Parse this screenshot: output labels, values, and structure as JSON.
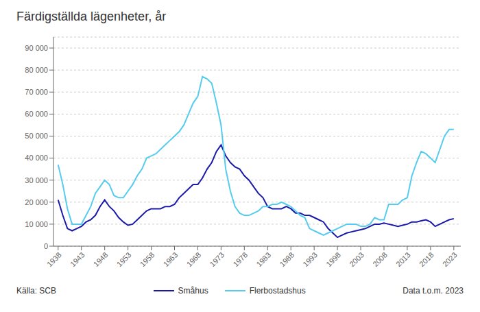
{
  "chart_data": {
    "type": "line",
    "title": "Färdigställda lägenheter, år",
    "x": [
      1938,
      1939,
      1940,
      1941,
      1942,
      1943,
      1944,
      1945,
      1946,
      1947,
      1948,
      1949,
      1950,
      1951,
      1952,
      1953,
      1954,
      1955,
      1956,
      1957,
      1958,
      1959,
      1960,
      1961,
      1962,
      1963,
      1964,
      1965,
      1966,
      1967,
      1968,
      1969,
      1970,
      1971,
      1972,
      1973,
      1974,
      1975,
      1976,
      1977,
      1978,
      1979,
      1980,
      1981,
      1982,
      1983,
      1984,
      1985,
      1986,
      1987,
      1988,
      1989,
      1990,
      1991,
      1992,
      1993,
      1994,
      1995,
      1996,
      1997,
      1998,
      1999,
      2000,
      2001,
      2002,
      2003,
      2004,
      2005,
      2006,
      2007,
      2008,
      2009,
      2010,
      2011,
      2012,
      2013,
      2014,
      2015,
      2016,
      2017,
      2018,
      2019,
      2020,
      2021,
      2022,
      2023
    ],
    "series": [
      {
        "name": "Småhus",
        "color": "#1a1aaa",
        "values": [
          21000,
          14000,
          8000,
          7000,
          8000,
          9000,
          11000,
          12000,
          14000,
          18000,
          21000,
          18000,
          16000,
          13000,
          11000,
          9500,
          10000,
          12000,
          14000,
          16000,
          17000,
          17000,
          17000,
          18000,
          18000,
          19000,
          22000,
          24000,
          26000,
          28000,
          28000,
          31000,
          35000,
          38000,
          43000,
          46000,
          41000,
          38000,
          36000,
          35000,
          32000,
          30000,
          27000,
          24000,
          22000,
          18000,
          17000,
          17000,
          17000,
          18000,
          17000,
          15000,
          15000,
          14000,
          14000,
          13000,
          12000,
          11000,
          8000,
          6000,
          4000,
          5000,
          6000,
          6500,
          7000,
          7500,
          8000,
          9000,
          10000,
          10000,
          10500,
          10000,
          9500,
          9000,
          9500,
          10000,
          11000,
          11000,
          11500,
          12000,
          11000,
          9000,
          10000,
          11000,
          12000,
          12500
        ]
      },
      {
        "name": "Flerbostadshus",
        "color": "#55ccee",
        "values": [
          37000,
          28000,
          17000,
          10000,
          10000,
          10000,
          14000,
          18000,
          24000,
          27000,
          30000,
          28000,
          23000,
          22000,
          22000,
          25000,
          28000,
          32000,
          35000,
          40000,
          41000,
          42000,
          44000,
          46000,
          48000,
          50000,
          52000,
          55000,
          60000,
          65000,
          68000,
          77000,
          76000,
          74000,
          65000,
          55000,
          35000,
          25000,
          18000,
          15000,
          14000,
          14000,
          15000,
          16000,
          18000,
          18000,
          19000,
          19000,
          20000,
          19000,
          18000,
          16000,
          14000,
          13000,
          8000,
          7000,
          6000,
          5000,
          6000,
          7000,
          8000,
          9000,
          10000,
          10000,
          10000,
          9000,
          9000,
          10000,
          13000,
          12000,
          12000,
          19000,
          19000,
          19000,
          21000,
          22000,
          32000,
          38000,
          43000,
          42000,
          40000,
          38000,
          44000,
          50000,
          53000,
          53000
        ]
      }
    ],
    "xlim": [
      1937,
      2024.5
    ],
    "xticks": [
      1938,
      1943,
      1948,
      1953,
      1958,
      1963,
      1968,
      1973,
      1978,
      1983,
      1988,
      1993,
      1998,
      2003,
      2008,
      2013,
      2018,
      2023
    ],
    "ylim": [
      0,
      95000
    ],
    "yticks": [
      0,
      {
        "value": 10000,
        "label": "10 000"
      },
      {
        "value": 20000,
        "label": "20 000"
      },
      {
        "value": 30000,
        "label": "30 000"
      },
      {
        "value": 40000,
        "label": "40 000"
      },
      {
        "value": 50000,
        "label": "50 000"
      },
      {
        "value": 60000,
        "label": "60 000"
      },
      {
        "value": 70000,
        "label": "70 000"
      },
      {
        "value": 80000,
        "label": "80 000"
      },
      {
        "value": 90000,
        "label": "90 000"
      }
    ],
    "grid": "y",
    "legend": "bottom",
    "annotations": [
      "Källa: SCB",
      "Data t.o.m. 2023"
    ]
  }
}
